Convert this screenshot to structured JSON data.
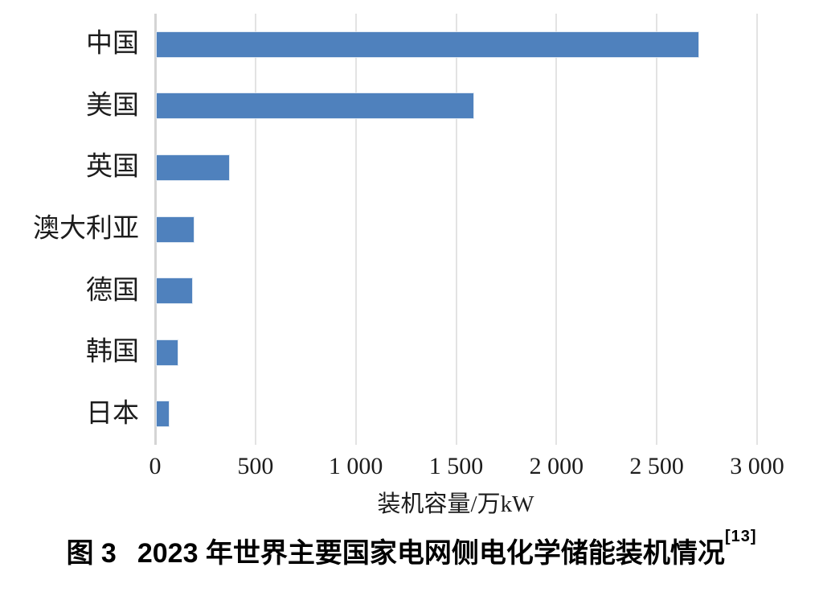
{
  "chart_data": {
    "type": "bar",
    "orientation": "horizontal",
    "title": "",
    "categories": [
      "中国",
      "美国",
      "英国",
      "澳大利亚",
      "德国",
      "韩国",
      "日本"
    ],
    "values": [
      2700,
      1580,
      360,
      185,
      175,
      105,
      60
    ],
    "xlabel": "装机容量/万kW",
    "ylabel": "",
    "xlim": [
      0,
      3000
    ],
    "xticks": [
      0,
      500,
      1000,
      1500,
      2000,
      2500,
      3000
    ],
    "xtick_labels": [
      "0",
      "500",
      "1 000",
      "1 500",
      "2 000",
      "2 500",
      "3 000"
    ],
    "grid": "vertical-gridlines-on",
    "legend": "none",
    "bar_color": "#4f81bd",
    "gridline_color": "#e3e3e3",
    "axis_color": "#d4d4d4",
    "text_color": "#1c1c1c"
  },
  "caption": {
    "label": "图 3",
    "text": "2023 年世界主要国家电网侧电化学储能装机情况",
    "reference": "[13]"
  }
}
